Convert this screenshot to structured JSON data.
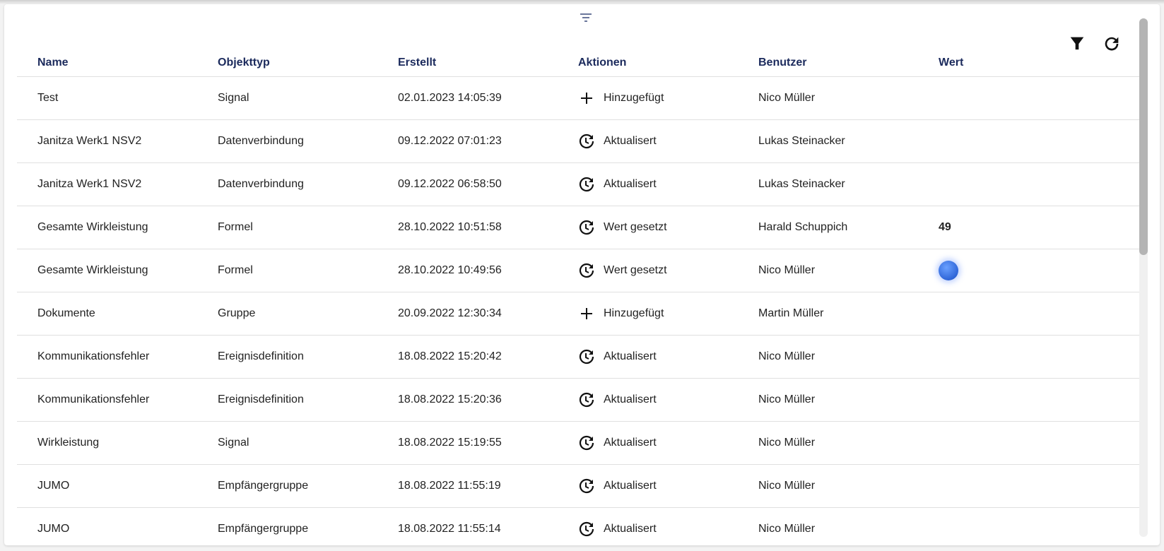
{
  "toolbar": {
    "sort_icon": "sort-lines-icon",
    "filter_icon": "filter-funnel-icon",
    "refresh_icon": "refresh-icon"
  },
  "columns": [
    "Name",
    "Objekttyp",
    "Erstellt",
    "Aktionen",
    "Benutzer",
    "Wert"
  ],
  "rows": [
    {
      "name": "Test",
      "type": "Signal",
      "created": "02.01.2023 14:05:39",
      "action": "Hinzugefügt",
      "action_icon": "plus",
      "user": "Nico Müller",
      "value": ""
    },
    {
      "name": "Janitza Werk1 NSV2",
      "type": "Datenverbindung",
      "created": "09.12.2022 07:01:23",
      "action": "Aktualisert",
      "action_icon": "update",
      "user": "Lukas Steinacker",
      "value": ""
    },
    {
      "name": "Janitza Werk1 NSV2",
      "type": "Datenverbindung",
      "created": "09.12.2022 06:58:50",
      "action": "Aktualisert",
      "action_icon": "update",
      "user": "Lukas Steinacker",
      "value": ""
    },
    {
      "name": "Gesamte Wirkleistung",
      "type": "Formel",
      "created": "28.10.2022 10:51:58",
      "action": "Wert gesetzt",
      "action_icon": "update",
      "user": "Harald Schuppich",
      "value": "49"
    },
    {
      "name": "Gesamte Wirkleistung",
      "type": "Formel",
      "created": "28.10.2022 10:49:56",
      "action": "Wert gesetzt",
      "action_icon": "update",
      "user": "Nico Müller",
      "value": "",
      "value_indicator": "blue-dot",
      "indicator_color": "#3b73e6"
    },
    {
      "name": "Dokumente",
      "type": "Gruppe",
      "created": "20.09.2022 12:30:34",
      "action": "Hinzugefügt",
      "action_icon": "plus",
      "user": "Martin Müller",
      "value": ""
    },
    {
      "name": "Kommunikationsfehler",
      "type": "Ereignisdefinition",
      "created": "18.08.2022 15:20:42",
      "action": "Aktualisert",
      "action_icon": "update",
      "user": "Nico Müller",
      "value": ""
    },
    {
      "name": "Kommunikationsfehler",
      "type": "Ereignisdefinition",
      "created": "18.08.2022 15:20:36",
      "action": "Aktualisert",
      "action_icon": "update",
      "user": "Nico Müller",
      "value": ""
    },
    {
      "name": "Wirkleistung",
      "type": "Signal",
      "created": "18.08.2022 15:19:55",
      "action": "Aktualisert",
      "action_icon": "update",
      "user": "Nico Müller",
      "value": ""
    },
    {
      "name": "JUMO",
      "type": "Empfängergruppe",
      "created": "18.08.2022 11:55:19",
      "action": "Aktualisert",
      "action_icon": "update",
      "user": "Nico Müller",
      "value": ""
    },
    {
      "name": "JUMO",
      "type": "Empfängergruppe",
      "created": "18.08.2022 11:55:14",
      "action": "Aktualisert",
      "action_icon": "update",
      "user": "Nico Müller",
      "value": ""
    }
  ],
  "colors": {
    "header_text": "#1b2a5c",
    "accent": "#3b73e6"
  }
}
